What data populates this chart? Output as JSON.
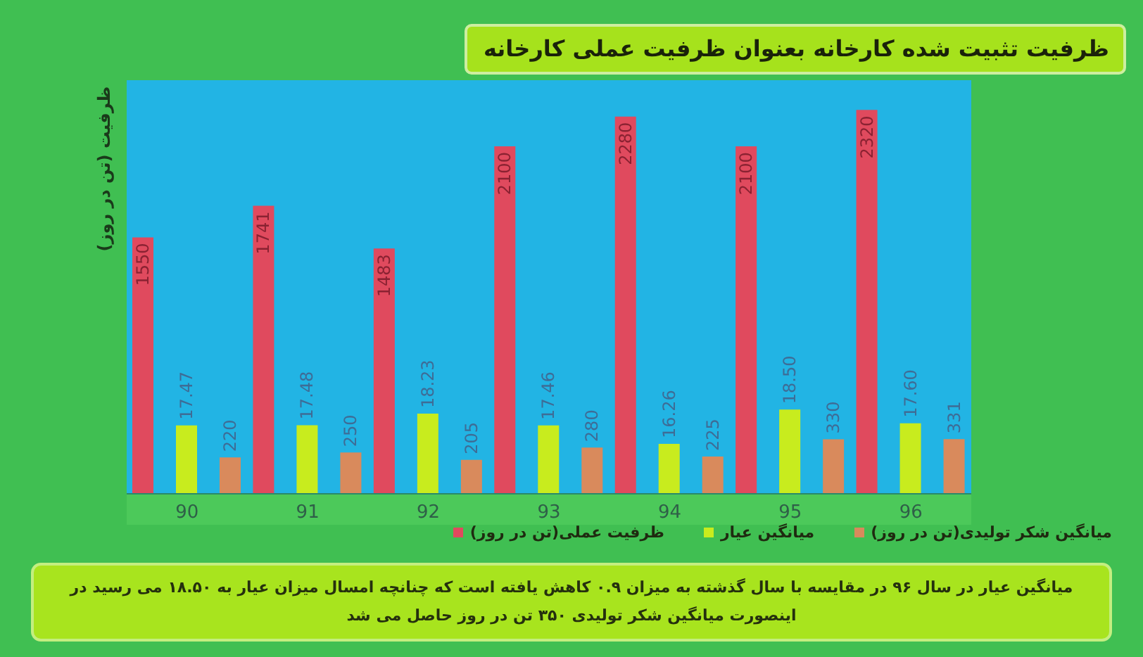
{
  "chart_data": {
    "type": "bar",
    "title": "ظرفیت تثبیت شده کارخانه بعنوان ظرفیت عملی کارخانه",
    "ylabel": "ظرفیت (تن در روز)",
    "categories": [
      "90",
      "91",
      "92",
      "93",
      "94",
      "95",
      "96"
    ],
    "series": [
      {
        "name": "ظرفیت عملی(تن در روز)",
        "color": "#e04a5e",
        "values": [
          1550,
          1741,
          1483,
          2100,
          2280,
          2100,
          2320
        ],
        "value_labels": [
          "1550",
          "1741",
          "1483",
          "2100",
          "2280",
          "2100",
          "2320"
        ]
      },
      {
        "name": "میانگین عیار",
        "color": "#c8ec1e",
        "axis": "y2",
        "values": [
          17.47,
          17.48,
          18.23,
          17.46,
          16.26,
          18.5,
          17.6
        ],
        "value_labels": [
          "17.47",
          "17.48",
          "18.23",
          "17.46",
          "16.26",
          "18.50",
          "17.60"
        ]
      },
      {
        "name": "میانگین شکر تولیدی(تن در روز)",
        "color": "#d98a5c",
        "values": [
          220,
          250,
          205,
          280,
          225,
          330,
          331
        ],
        "value_labels": [
          "220",
          "250",
          "205",
          "280",
          "225",
          "330",
          "331"
        ]
      }
    ],
    "ylim": [
      0,
      2500
    ],
    "y2lim": [
      13,
      40
    ],
    "tick_labels": "x",
    "legend": "bottom",
    "annotations": [
      "میانگین عیار در سال ۹۶ در مقایسه با سال گذشته به میزان ۰.۹ کاهش یافته است که چنانچه امسال میزان عیار به ۱۸.۵۰ می رسید در اینصورت میانگین شکر تولیدی ۳۵۰ تن در روز حاصل می شد"
    ]
  }
}
